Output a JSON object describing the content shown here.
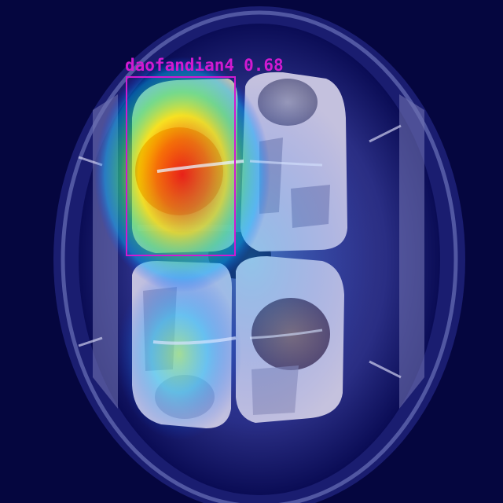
{
  "detection": {
    "class_name": "daofandian4",
    "score": "0.68",
    "box_color": "#d11ad1"
  },
  "scene": {
    "items": [
      {
        "name": "top-left-package",
        "has_heatmap": true
      },
      {
        "name": "top-right-package",
        "has_heatmap": false
      },
      {
        "name": "bottom-left-package",
        "has_heatmap": true
      },
      {
        "name": "bottom-right-package",
        "has_heatmap": false
      }
    ],
    "colors": {
      "background": "#05063f",
      "vignette": "#0c0f6e",
      "package": "#c9c7e6",
      "heat_peak": "#ff1a00",
      "heat_mid": "#ffe600",
      "heat_low": "#00d0ff"
    }
  }
}
